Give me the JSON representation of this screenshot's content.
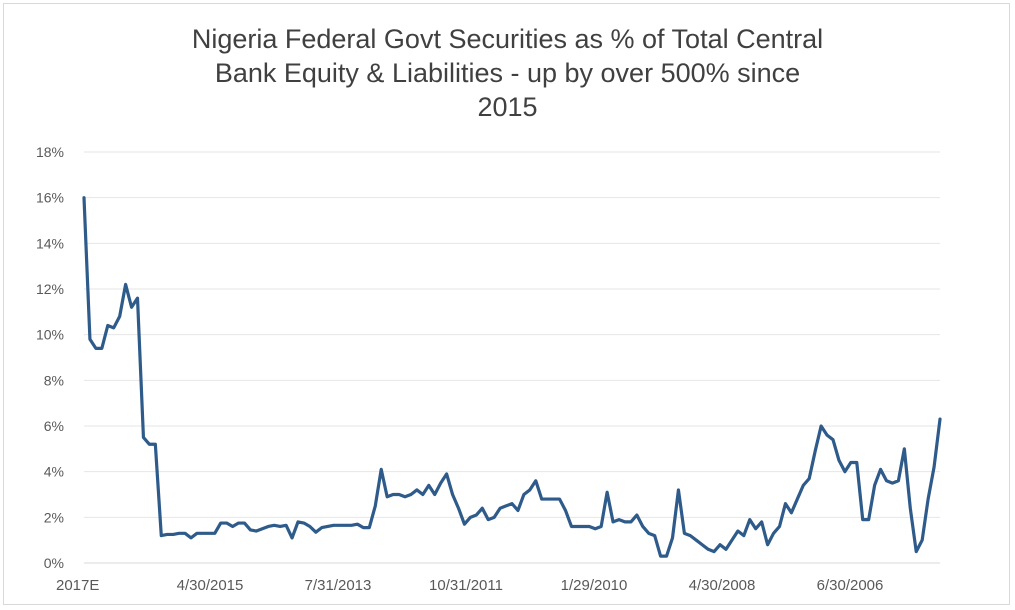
{
  "chart_data": {
    "type": "line",
    "title_lines": [
      "Nigeria Federal Govt Securities as % of Total Central",
      "Bank Equity & Liabilities - up by over 500% since",
      "2015"
    ],
    "xlabel": "",
    "ylabel": "",
    "ylim": [
      0,
      18
    ],
    "y_ticks": [
      "0%",
      "2%",
      "4%",
      "6%",
      "8%",
      "10%",
      "12%",
      "14%",
      "16%",
      "18%"
    ],
    "x_tick_labels": [
      "2017E",
      "4/30/2015",
      "7/31/2013",
      "10/31/2011",
      "1/29/2010",
      "4/30/2008",
      "6/30/2006"
    ],
    "grid": true,
    "legend": "none",
    "line_color": "#2e5b8a",
    "series": [
      {
        "values": [
          16.0,
          9.8,
          9.4,
          9.4,
          10.4,
          10.3,
          10.8,
          12.2,
          11.2,
          11.6,
          5.5,
          5.2,
          5.2,
          1.2,
          1.25,
          1.25,
          1.3,
          1.3,
          1.1,
          1.3,
          1.3,
          1.3,
          1.3,
          1.75,
          1.75,
          1.6,
          1.75,
          1.75,
          1.45,
          1.4,
          1.5,
          1.6,
          1.65,
          1.6,
          1.65,
          1.1,
          1.8,
          1.75,
          1.6,
          1.35,
          1.55,
          1.6,
          1.65,
          1.65,
          1.65,
          1.65,
          1.7,
          1.55,
          1.55,
          2.5,
          4.1,
          2.9,
          3.0,
          3.0,
          2.9,
          3.0,
          3.2,
          3.0,
          3.4,
          3.0,
          3.5,
          3.9,
          3.0,
          2.4,
          1.7,
          2.0,
          2.1,
          2.4,
          1.9,
          2.0,
          2.4,
          2.5,
          2.6,
          2.3,
          3.0,
          3.2,
          3.6,
          2.8,
          2.8,
          2.8,
          2.8,
          2.3,
          1.6,
          1.6,
          1.6,
          1.6,
          1.5,
          1.6,
          3.1,
          1.8,
          1.9,
          1.8,
          1.8,
          2.1,
          1.6,
          1.3,
          1.2,
          0.3,
          0.3,
          1.1,
          3.2,
          1.3,
          1.2,
          1.0,
          0.8,
          0.6,
          0.5,
          0.8,
          0.6,
          1.0,
          1.4,
          1.2,
          1.9,
          1.5,
          1.8,
          0.8,
          1.3,
          1.6,
          2.6,
          2.2,
          2.8,
          3.4,
          3.7,
          4.9,
          6.0,
          5.6,
          5.4,
          4.5,
          4.0,
          4.4,
          4.4,
          1.9,
          1.9,
          3.4,
          4.1,
          3.6,
          3.5,
          3.6,
          5.0,
          2.4,
          0.5,
          1.0,
          2.8,
          4.2,
          6.3
        ]
      }
    ]
  }
}
